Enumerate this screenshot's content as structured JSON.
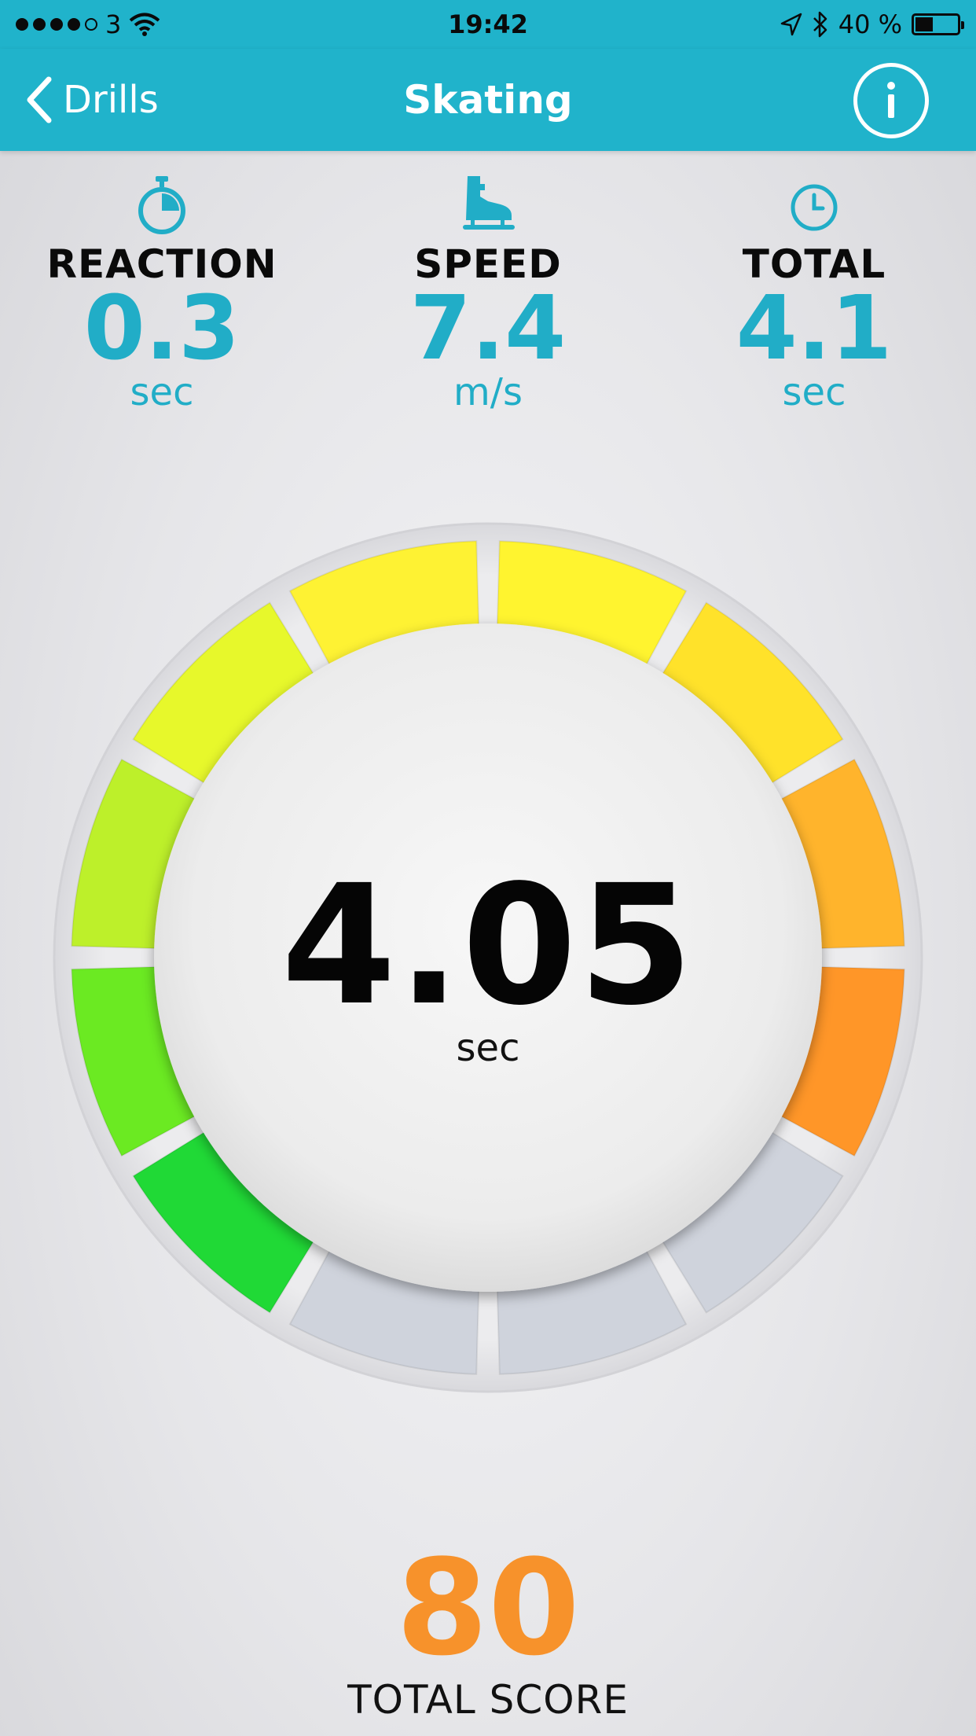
{
  "status_bar": {
    "carrier": "3",
    "time": "19:42",
    "battery_text": "40 %",
    "battery_level": 0.4
  },
  "nav": {
    "back_label": "Drills",
    "title": "Skating",
    "back_icon": "chevron-left-icon",
    "info_icon": "info-icon"
  },
  "stats": [
    {
      "label": "REACTION",
      "value": "0.3",
      "unit": "sec",
      "icon": "stopwatch-icon"
    },
    {
      "label": "SPEED",
      "value": "7.4",
      "unit": "m/s",
      "icon": "skate-icon"
    },
    {
      "label": "TOTAL",
      "value": "4.1",
      "unit": "sec",
      "icon": "clock-icon"
    }
  ],
  "gauge": {
    "value": "4.05",
    "unit": "sec",
    "segments_total": 12,
    "segment_colors": [
      "#fff42f",
      "#ffe22a",
      "#ffb42c",
      "#ff9628",
      "#cfd3dc",
      "#cfd3dc",
      "#cfd3dc",
      "#20d936",
      "#6bea22",
      "#bdf02a",
      "#e7f82b",
      "#fef233"
    ],
    "inactive_color": "#cfd3dc"
  },
  "score": {
    "value": "80",
    "label": "TOTAL SCORE",
    "color": "#f7922b"
  },
  "colors": {
    "accent": "#20b3cb",
    "value_text": "#21adc7"
  }
}
